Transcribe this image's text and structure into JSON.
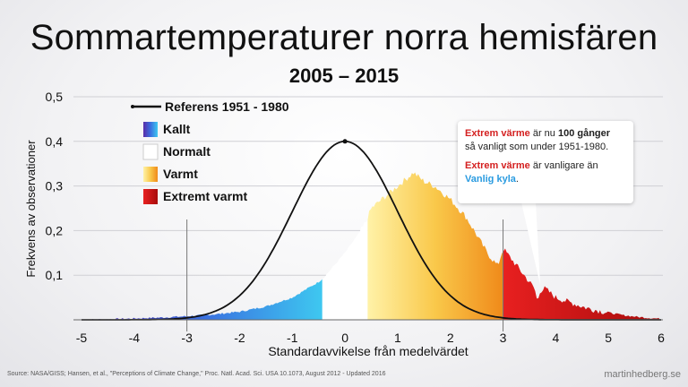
{
  "title": "Sommartemperaturer norra hemisfären",
  "subtitle": "2005 – 2015",
  "chart_data": {
    "type": "area",
    "xlabel": "Standardavvikelse från medelvärdet",
    "ylabel": "Frekvens av observationer",
    "xlim": [
      -5,
      6
    ],
    "ylim": [
      0,
      0.5
    ],
    "x_ticks": [
      "-5",
      "-4",
      "-3",
      "-2",
      "-1",
      "0",
      "1",
      "2",
      "3",
      "4",
      "5",
      "6"
    ],
    "y_ticks": [
      "0,1",
      "0,2",
      "0,3",
      "0,4",
      "0,5"
    ],
    "grid": true,
    "reference_lines_x": [
      -3,
      3
    ],
    "legend": {
      "placement": "top-left",
      "entries": [
        {
          "label": "Referens 1951 - 1980",
          "kind": "line",
          "color": "#111111"
        },
        {
          "label": "Kallt",
          "kind": "swatch",
          "color": "#2b7fe0"
        },
        {
          "label": "Normalt",
          "kind": "swatch",
          "color": "#ffffff"
        },
        {
          "label": "Varmt",
          "kind": "swatch",
          "color": "#f5a623"
        },
        {
          "label": "Extremt varmt",
          "kind": "swatch",
          "color": "#d01818"
        }
      ]
    },
    "reference_series": {
      "name": "Referens 1951 - 1980",
      "distribution": "normal",
      "mean": 0,
      "sd": 1,
      "peak": 0.4
    },
    "observed_series": {
      "x": [
        -5,
        -4.5,
        -4,
        -3.5,
        -3,
        -2.5,
        -2,
        -1.5,
        -1,
        -0.5,
        -0.4,
        0,
        0.3,
        0.4,
        0.5,
        0.8,
        1,
        1.2,
        1.3,
        1.5,
        1.7,
        2,
        2.3,
        2.5,
        2.7,
        2.9,
        3.0,
        3.2,
        3.4,
        3.6,
        3.65,
        3.7,
        3.8,
        4,
        4.3,
        4.6,
        5,
        5.3,
        5.6,
        6
      ],
      "y": [
        0,
        0.001,
        0.003,
        0.005,
        0.008,
        0.012,
        0.018,
        0.03,
        0.05,
        0.085,
        0.095,
        0.15,
        0.2,
        0.22,
        0.25,
        0.28,
        0.3,
        0.32,
        0.33,
        0.31,
        0.3,
        0.27,
        0.23,
        0.19,
        0.15,
        0.12,
        0.16,
        0.13,
        0.1,
        0.07,
        0.04,
        0.065,
        0.07,
        0.05,
        0.038,
        0.026,
        0.016,
        0.01,
        0.006,
        0.002
      ]
    },
    "category_ranges": [
      {
        "label": "Kallt",
        "from": -5,
        "to": -0.43
      },
      {
        "label": "Normalt",
        "from": -0.43,
        "to": 0.43
      },
      {
        "label": "Varmt",
        "from": 0.43,
        "to": 3
      },
      {
        "label": "Extremt varmt",
        "from": 3,
        "to": 6
      }
    ]
  },
  "callout": {
    "line1_red": "Extrem värme",
    "line1_text": " är nu ",
    "line1_bold": "100 gånger",
    "line2": "så vanligt som under 1951-1980.",
    "line3_red": "Extrem värme",
    "line3_text": " är vanligare än",
    "line4_blue": "Vanlig kyla",
    "line4_end": "."
  },
  "source": "Source: NASA/GISS; Hansen, et al., \"Perceptions of Climate Change,\" Proc. Natl. Acad. Sci. USA 10.1073, August 2012 - Updated 2016",
  "credit": "martinhedberg.se"
}
